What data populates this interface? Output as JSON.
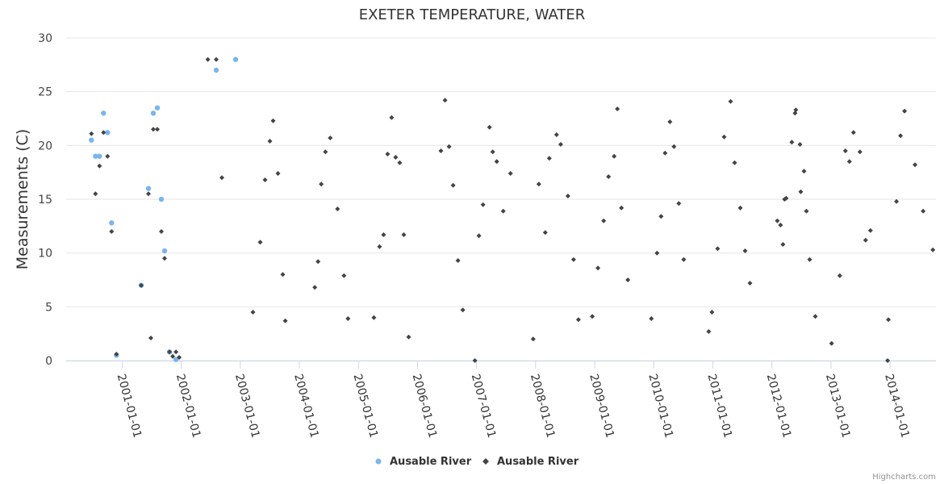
{
  "chart_data": {
    "type": "scatter",
    "title": "EXETER TEMPERATURE, WATER",
    "xlabel": "",
    "ylabel": "Measurements (C)",
    "ylim": [
      0,
      30
    ],
    "yticks": [
      "0",
      "5",
      "10",
      "15",
      "20",
      "25",
      "30"
    ],
    "xlim": [
      "2000-01-20",
      "2014-10-12"
    ],
    "xticks": [
      "2001-01-01",
      "2002-01-01",
      "2003-01-01",
      "2004-01-01",
      "2005-01-01",
      "2006-01-01",
      "2007-01-01",
      "2008-01-01",
      "2009-01-01",
      "2010-01-01",
      "2011-01-01",
      "2012-01-01",
      "2013-01-01",
      "2014-01-01"
    ],
    "grid": true,
    "legend_position": "bottom-center",
    "series": [
      {
        "name": "Ausable River",
        "color": "#7cb5ec",
        "marker": "circle",
        "points": [
          [
            "2000-06-24",
            20.5
          ],
          [
            "2000-07-19",
            19.0
          ],
          [
            "2000-08-13",
            19.0
          ],
          [
            "2000-09-07",
            23.0
          ],
          [
            "2000-10-02",
            21.2
          ],
          [
            "2000-10-27",
            12.8
          ],
          [
            "2000-11-26",
            0.5
          ],
          [
            "2001-04-28",
            7.0
          ],
          [
            "2001-06-12",
            16.0
          ],
          [
            "2001-07-12",
            23.0
          ],
          [
            "2001-08-06",
            23.5
          ],
          [
            "2001-08-31",
            15.0
          ],
          [
            "2001-09-20",
            10.2
          ],
          [
            "2001-10-20",
            0.8
          ],
          [
            "2001-11-29",
            0.1
          ],
          [
            "2002-12-03",
            28.0
          ],
          [
            "2002-08-05",
            27.0
          ]
        ]
      },
      {
        "name": "Ausable River",
        "color": "#434348",
        "marker": "diamond",
        "points": [
          [
            "2000-06-24",
            21.1
          ],
          [
            "2000-07-19",
            15.5
          ],
          [
            "2000-08-13",
            18.1
          ],
          [
            "2000-09-07",
            21.2
          ],
          [
            "2000-10-02",
            19.0
          ],
          [
            "2000-10-27",
            12.0
          ],
          [
            "2000-11-26",
            0.6
          ],
          [
            "2001-04-28",
            7.0
          ],
          [
            "2001-06-12",
            15.5
          ],
          [
            "2001-06-27",
            2.1
          ],
          [
            "2001-07-12",
            21.5
          ],
          [
            "2001-08-06",
            21.5
          ],
          [
            "2001-08-31",
            12.0
          ],
          [
            "2001-09-20",
            9.5
          ],
          [
            "2001-10-20",
            0.8
          ],
          [
            "2001-11-09",
            0.4
          ],
          [
            "2001-11-29",
            0.8
          ],
          [
            "2001-12-19",
            0.3
          ],
          [
            "2002-06-14",
            28.0
          ],
          [
            "2002-08-05",
            28.0
          ],
          [
            "2002-09-09",
            17.0
          ],
          [
            "2003-03-20",
            4.5
          ],
          [
            "2003-05-04",
            11.0
          ],
          [
            "2003-06-03",
            16.8
          ],
          [
            "2003-07-03",
            20.4
          ],
          [
            "2003-07-23",
            22.3
          ],
          [
            "2003-08-22",
            17.4
          ],
          [
            "2003-09-21",
            8.0
          ],
          [
            "2003-10-06",
            3.7
          ],
          [
            "2004-04-06",
            6.8
          ],
          [
            "2004-04-26",
            9.2
          ],
          [
            "2004-05-16",
            16.4
          ],
          [
            "2004-06-10",
            19.4
          ],
          [
            "2004-07-10",
            20.7
          ],
          [
            "2004-08-24",
            14.1
          ],
          [
            "2004-10-03",
            7.9
          ],
          [
            "2004-10-28",
            3.9
          ],
          [
            "2005-04-06",
            4.0
          ],
          [
            "2005-05-11",
            10.6
          ],
          [
            "2005-06-05",
            11.7
          ],
          [
            "2005-06-30",
            19.2
          ],
          [
            "2005-07-25",
            22.6
          ],
          [
            "2005-08-19",
            18.9
          ],
          [
            "2005-09-13",
            18.4
          ],
          [
            "2005-10-08",
            11.7
          ],
          [
            "2005-11-07",
            2.2
          ],
          [
            "2006-05-26",
            19.5
          ],
          [
            "2006-06-20",
            24.2
          ],
          [
            "2006-07-15",
            19.9
          ],
          [
            "2006-08-09",
            16.3
          ],
          [
            "2006-09-08",
            9.3
          ],
          [
            "2006-10-08",
            4.7
          ],
          [
            "2006-12-22",
            0.0
          ],
          [
            "2007-01-16",
            11.6
          ],
          [
            "2007-02-10",
            14.5
          ],
          [
            "2007-03-22",
            21.7
          ],
          [
            "2007-04-11",
            19.4
          ],
          [
            "2007-05-06",
            18.5
          ],
          [
            "2007-06-15",
            13.9
          ],
          [
            "2007-07-30",
            17.4
          ],
          [
            "2007-12-17",
            2.0
          ],
          [
            "2008-01-21",
            16.4
          ],
          [
            "2008-03-01",
            11.9
          ],
          [
            "2008-03-26",
            18.8
          ],
          [
            "2008-05-10",
            21.0
          ],
          [
            "2008-06-04",
            20.1
          ],
          [
            "2008-07-19",
            15.3
          ],
          [
            "2008-08-23",
            9.4
          ],
          [
            "2008-09-22",
            3.8
          ],
          [
            "2008-12-17",
            4.1
          ],
          [
            "2009-01-21",
            8.6
          ],
          [
            "2009-02-25",
            13.0
          ],
          [
            "2009-03-27",
            17.1
          ],
          [
            "2009-05-01",
            19.0
          ],
          [
            "2009-05-21",
            23.4
          ],
          [
            "2009-06-15",
            14.2
          ],
          [
            "2009-07-25",
            7.5
          ],
          [
            "2009-12-17",
            3.9
          ],
          [
            "2010-01-21",
            10.0
          ],
          [
            "2010-02-15",
            13.4
          ],
          [
            "2010-03-12",
            19.3
          ],
          [
            "2010-04-11",
            22.2
          ],
          [
            "2010-05-06",
            19.9
          ],
          [
            "2010-06-05",
            14.6
          ],
          [
            "2010-07-05",
            9.4
          ],
          [
            "2010-12-07",
            2.7
          ],
          [
            "2010-12-27",
            4.5
          ],
          [
            "2011-01-31",
            10.4
          ],
          [
            "2011-03-12",
            20.8
          ],
          [
            "2011-04-21",
            24.1
          ],
          [
            "2011-05-16",
            18.4
          ],
          [
            "2011-06-20",
            14.2
          ],
          [
            "2011-07-20",
            10.2
          ],
          [
            "2011-08-19",
            7.2
          ],
          [
            "2012-02-04",
            13.0
          ],
          [
            "2012-02-24",
            12.6
          ],
          [
            "2012-03-10",
            10.8
          ],
          [
            "2012-03-20",
            15.0
          ],
          [
            "2012-03-30",
            15.1
          ],
          [
            "2012-05-04",
            20.3
          ],
          [
            "2012-05-24",
            23.0
          ],
          [
            "2012-05-29",
            23.3
          ],
          [
            "2012-06-23",
            20.1
          ],
          [
            "2012-06-28",
            15.7
          ],
          [
            "2012-07-18",
            17.6
          ],
          [
            "2012-08-02",
            13.9
          ],
          [
            "2012-08-22",
            9.4
          ],
          [
            "2012-09-26",
            4.1
          ],
          [
            "2013-01-05",
            1.6
          ],
          [
            "2013-02-24",
            7.9
          ],
          [
            "2013-03-31",
            19.5
          ],
          [
            "2013-04-25",
            18.5
          ],
          [
            "2013-05-20",
            21.2
          ],
          [
            "2013-06-29",
            19.4
          ],
          [
            "2013-08-03",
            11.2
          ],
          [
            "2013-09-02",
            12.1
          ],
          [
            "2013-12-17",
            0.0
          ],
          [
            "2013-12-22",
            3.8
          ],
          [
            "2014-02-10",
            14.8
          ],
          [
            "2014-03-07",
            20.9
          ],
          [
            "2014-04-01",
            23.2
          ],
          [
            "2014-06-05",
            18.2
          ],
          [
            "2014-07-25",
            13.9
          ],
          [
            "2014-09-23",
            10.3
          ]
        ]
      }
    ]
  },
  "credits": "Highcharts.com"
}
